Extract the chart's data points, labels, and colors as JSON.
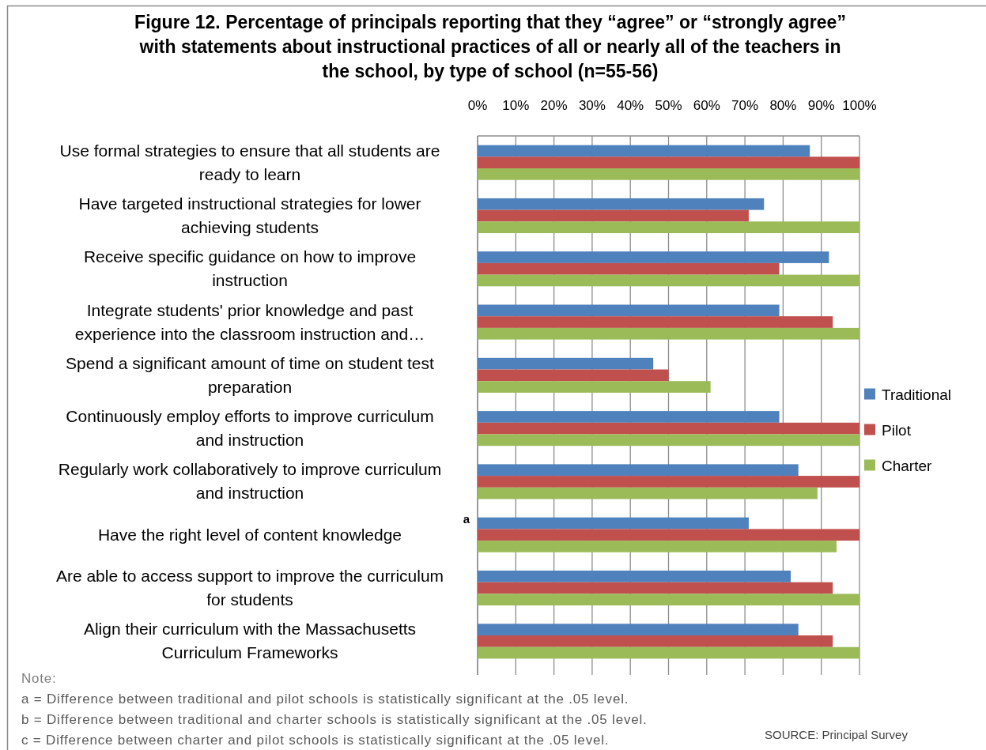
{
  "chart_data": {
    "type": "bar",
    "orientation": "horizontal",
    "title": "Figure 12. Percentage of principals reporting that they “agree” or “strongly agree” with statements about instructional practices of all or nearly all of the teachers in the school, by type of school (n=55-56)",
    "categories": [
      "Use formal strategies to ensure that all students are ready to learn",
      "Have targeted instructional strategies for lower achieving students",
      "Receive specific guidance on how to improve instruction",
      "Integrate students' prior knowledge and past experience into the classroom instruction and…",
      "Spend a significant amount of time on student test preparation",
      "Continuously employ efforts to improve curriculum and instruction",
      "Regularly work collaboratively to improve curriculum and instruction",
      "Have the right level of content knowledge",
      "Are able to access support to improve the curriculum for students",
      "Align their curriculum with the Massachusetts Curriculum Frameworks"
    ],
    "series": [
      {
        "name": "Traditional",
        "color": "#4f81bd",
        "values": [
          87,
          75,
          92,
          79,
          46,
          79,
          84,
          71,
          82,
          84
        ]
      },
      {
        "name": "Pilot",
        "color": "#c0504d",
        "values": [
          100,
          71,
          79,
          93,
          50,
          100,
          100,
          100,
          93,
          93
        ]
      },
      {
        "name": "Charter",
        "color": "#9bbb59",
        "values": [
          100,
          100,
          100,
          100,
          61,
          100,
          89,
          94,
          100,
          100
        ]
      }
    ],
    "xlim": [
      0,
      100
    ],
    "xticks": [
      {
        "value": 0,
        "label": "0%"
      },
      {
        "value": 10,
        "label": "10%"
      },
      {
        "value": 20,
        "label": "20%"
      },
      {
        "value": 30,
        "label": "30%"
      },
      {
        "value": 40,
        "label": "40%"
      },
      {
        "value": 50,
        "label": "50%"
      },
      {
        "value": 60,
        "label": "60%"
      },
      {
        "value": 70,
        "label": "70%"
      },
      {
        "value": 80,
        "label": "80%"
      },
      {
        "value": 90,
        "label": "90%"
      },
      {
        "value": 100,
        "label": "100%"
      }
    ],
    "grid": "x",
    "legend": "right",
    "annotations": [
      "a",
      "Note:",
      "a = Difference between traditional and pilot schools is statistically significant at the .05 level.",
      "b = Difference between traditional and charter schools is statistically significant at the .05 level.",
      "c = Difference between charter and pilot schools is statistically significant at the .05 level.",
      "SOURCE: Principal Survey"
    ]
  }
}
